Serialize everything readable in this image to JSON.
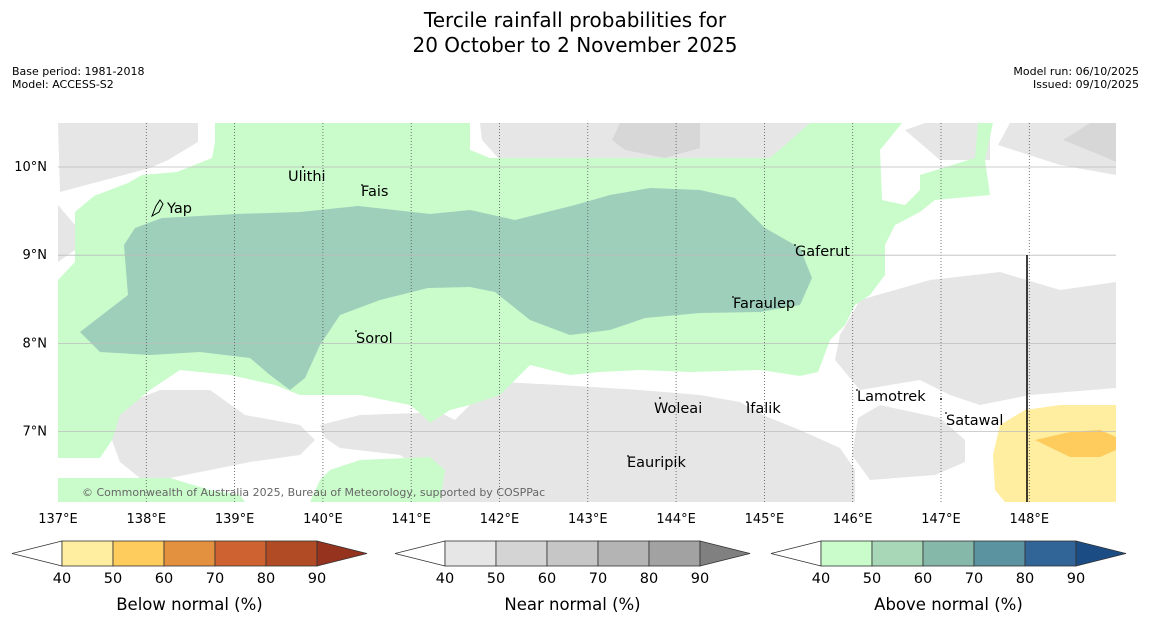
{
  "title_line1": "Tercile rainfall probabilities for",
  "title_line2": "20 October to 2 November 2025",
  "base_period": "Base period: 1981-2018",
  "model": "Model: ACCESS-S2",
  "model_run": "Model run: 06/10/2025",
  "issued": "Issued: 09/10/2025",
  "copyright": "© Commonwealth of Australia 2025, Bureau of Meteorology, supported by COSPPac",
  "longitude_ticks": [
    "137°E",
    "138°E",
    "139°E",
    "140°E",
    "141°E",
    "142°E",
    "143°E",
    "144°E",
    "145°E",
    "146°E",
    "147°E",
    "148°E"
  ],
  "latitude_ticks": [
    "10°N",
    "9°N",
    "8°N",
    "7°N"
  ],
  "places": [
    "Ulithi",
    "Fais",
    "Yap",
    "Gaferut",
    "Faraulep",
    "Sorol",
    "Woleai",
    "Ifalik",
    "Lamotrek",
    "Satawal",
    "Eauripik"
  ],
  "colorbars": [
    {
      "label": "Below normal (%)",
      "ticks": [
        "40",
        "50",
        "60",
        "70",
        "80",
        "90"
      ],
      "colors": [
        "#ffeda0",
        "#fecc5c",
        "#e3913f",
        "#ce6331",
        "#b04b26",
        "#96331f"
      ]
    },
    {
      "label": "Near normal (%)",
      "ticks": [
        "40",
        "50",
        "60",
        "70",
        "80",
        "90"
      ],
      "colors": [
        "#e6e6e6",
        "#d4d4d4",
        "#c6c6c6",
        "#b4b4b4",
        "#a2a2a2",
        "#808080"
      ]
    },
    {
      "label": "Above normal (%)",
      "ticks": [
        "40",
        "50",
        "60",
        "70",
        "80",
        "90"
      ],
      "colors": [
        "#c9fcca",
        "#a7d7b7",
        "#86b8a9",
        "#5b93a0",
        "#326597",
        "#1b4d84"
      ]
    }
  ],
  "field_colors": {
    "above_40": "#c9fcca",
    "above_50": "#9dcfbb",
    "near_40": "#e6e6e6",
    "near_50": "#d7d7d7",
    "below_40": "#ffeda0",
    "below_50": "#fecc5c"
  }
}
